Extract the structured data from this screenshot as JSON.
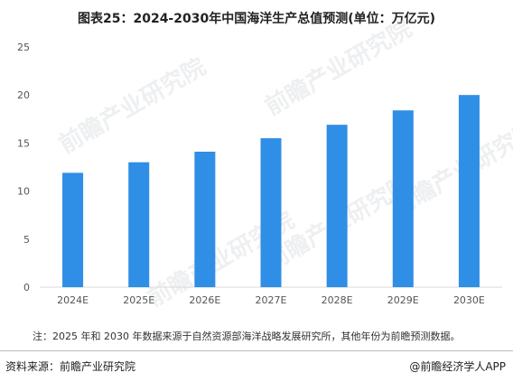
{
  "title": "图表25：2024-2030年中国海洋生产总值预测(单位：万亿元)",
  "note": "注：2025 年和 2030 年数据来源于自然资源部海洋战略发展研究所，其他年份为前瞻预测数据。",
  "source": "资料来源：前瞻产业研究院",
  "credit": "@前瞻经济学人APP",
  "watermark_text": "前瞻产业研究院",
  "colors": {
    "bar": "#2f8ee5",
    "axis": "#d9d9d9",
    "text": "#555555"
  },
  "chart_data": {
    "type": "bar",
    "categories": [
      "2024E",
      "2025E",
      "2026E",
      "2027E",
      "2028E",
      "2029E",
      "2030E"
    ],
    "values": [
      11.9,
      13.0,
      14.1,
      15.5,
      16.9,
      18.4,
      20.0
    ],
    "ylim": [
      0,
      25
    ],
    "yticks": [
      0,
      5,
      10,
      15,
      20,
      25
    ],
    "grid": false,
    "xlabel": "",
    "ylabel": ""
  }
}
